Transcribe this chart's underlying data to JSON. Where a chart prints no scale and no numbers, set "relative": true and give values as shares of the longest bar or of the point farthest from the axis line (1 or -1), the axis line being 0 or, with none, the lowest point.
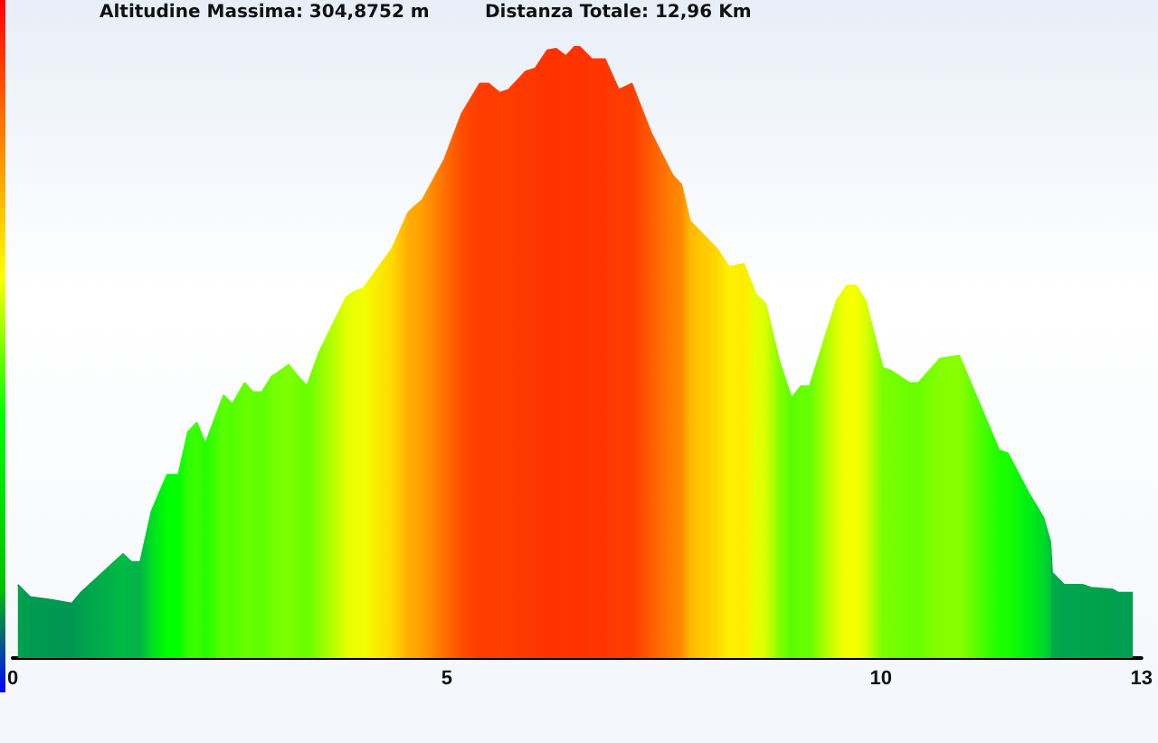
{
  "chart_data": {
    "type": "area",
    "relative": true,
    "annotations": [
      "Altitudine Massima: 304,8752 m",
      "Distanza Totale: 12,96 Km"
    ],
    "xlim": [
      0,
      13
    ],
    "xticks": [
      0,
      5,
      10,
      13
    ],
    "grid": false,
    "marker": "none",
    "x": [
      0.06,
      0.2,
      0.45,
      0.68,
      0.78,
      1.27,
      1.37,
      1.47,
      1.6,
      1.78,
      1.91,
      2.02,
      2.12,
      2.22,
      2.43,
      2.53,
      2.67,
      2.77,
      2.87,
      2.98,
      3.18,
      3.29,
      3.39,
      3.53,
      3.84,
      3.94,
      4.04,
      4.37,
      4.56,
      4.72,
      4.97,
      5.17,
      5.38,
      5.48,
      5.61,
      5.71,
      5.91,
      6.02,
      6.16,
      6.26,
      6.37,
      6.47,
      6.53,
      6.67,
      6.82,
      6.98,
      7.13,
      7.35,
      7.6,
      7.7,
      7.8,
      8.11,
      8.25,
      8.42,
      8.56,
      8.67,
      8.83,
      8.97,
      9.08,
      9.18,
      9.49,
      9.61,
      9.71,
      9.82,
      10.02,
      10.12,
      10.33,
      10.43,
      10.68,
      10.9,
      11.36,
      11.46,
      11.7,
      11.87,
      11.95,
      11.97,
      12.11,
      12.32,
      12.42,
      12.67,
      12.73,
      12.9
    ],
    "values": [
      0.12,
      0.1,
      0.095,
      0.089,
      0.106,
      0.17,
      0.157,
      0.157,
      0.24,
      0.3,
      0.3,
      0.37,
      0.385,
      0.35,
      0.43,
      0.415,
      0.45,
      0.435,
      0.435,
      0.46,
      0.48,
      0.46,
      0.445,
      0.5,
      0.59,
      0.6,
      0.605,
      0.67,
      0.73,
      0.75,
      0.815,
      0.89,
      0.94,
      0.94,
      0.925,
      0.93,
      0.96,
      0.965,
      0.995,
      0.997,
      0.985,
      1,
      1,
      0.98,
      0.98,
      0.93,
      0.94,
      0.86,
      0.79,
      0.775,
      0.715,
      0.67,
      0.64,
      0.645,
      0.595,
      0.58,
      0.485,
      0.425,
      0.445,
      0.445,
      0.585,
      0.61,
      0.61,
      0.585,
      0.475,
      0.47,
      0.45,
      0.45,
      0.49,
      0.495,
      0.34,
      0.335,
      0.27,
      0.23,
      0.19,
      0.14,
      0.12,
      0.12,
      0.115,
      0.112,
      0.107,
      0.107
    ]
  }
}
